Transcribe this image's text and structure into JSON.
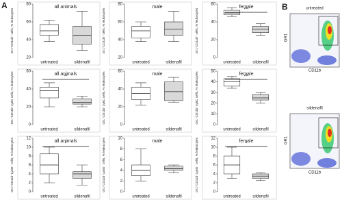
{
  "panel_labels": [
    "A",
    "B"
  ],
  "chart_data": [
    {
      "type": "box",
      "title": "all animals",
      "ylabel": "Gr1⁺CD11b⁺ cells, % leukocytes",
      "categories": [
        "untreated",
        "sildenafil"
      ],
      "colors": [
        "#ffffff",
        "#d9d9d9"
      ],
      "ylim": [
        20,
        80
      ],
      "yticks": [
        20,
        40,
        60,
        80
      ],
      "boxes": [
        {
          "min": 38,
          "q1": 45,
          "median": 50,
          "q3": 57,
          "max": 62
        },
        {
          "min": 28,
          "q1": 35,
          "median": 45,
          "q3": 55,
          "max": 72
        }
      ]
    },
    {
      "type": "box",
      "title": "male",
      "ylabel": "Gr1⁺CD11b⁺ cells, % leukocytes",
      "categories": [
        "untreated",
        "sildenafil"
      ],
      "colors": [
        "#ffffff",
        "#d9d9d9"
      ],
      "ylim": [
        20,
        80
      ],
      "yticks": [
        20,
        40,
        60,
        80
      ],
      "boxes": [
        {
          "min": 38,
          "q1": 42,
          "median": 50,
          "q3": 55,
          "max": 60
        },
        {
          "min": 38,
          "q1": 45,
          "median": 52,
          "q3": 60,
          "max": 72
        }
      ]
    },
    {
      "type": "box",
      "title": "female",
      "ylabel": "Gr1⁺CD11b⁺ cells, % leukocytes",
      "categories": [
        "untreated",
        "sildenafil"
      ],
      "colors": [
        "#ffffff",
        "#d9d9d9"
      ],
      "ylim": [
        0,
        60
      ],
      "yticks": [
        0,
        20,
        40,
        60
      ],
      "annotation": "***",
      "boxes": [
        {
          "min": 46,
          "q1": 48,
          "median": 50,
          "q3": 53,
          "max": 56
        },
        {
          "min": 25,
          "q1": 28,
          "median": 32,
          "q3": 35,
          "max": 38
        }
      ]
    },
    {
      "type": "box",
      "title": "all animals",
      "ylabel": "Gr1⁺CD11b⁺Ly6C cells, % leukocytes",
      "categories": [
        "untreated",
        "sildenafil"
      ],
      "colors": [
        "#ffffff",
        "#d9d9d9"
      ],
      "ylim": [
        0,
        60
      ],
      "yticks": [
        0,
        20,
        40,
        60
      ],
      "annotation": "**",
      "boxes": [
        {
          "min": 20,
          "q1": 30,
          "median": 38,
          "q3": 42,
          "max": 47
        },
        {
          "min": 20,
          "q1": 23,
          "median": 25,
          "q3": 29,
          "max": 32
        }
      ]
    },
    {
      "type": "box",
      "title": "male",
      "ylabel": "Gr1⁺CD11b⁺Ly6C cells, % leukocytes",
      "categories": [
        "untreated",
        "sildenafil"
      ],
      "colors": [
        "#ffffff",
        "#d9d9d9"
      ],
      "ylim": [
        0,
        60
      ],
      "yticks": [
        0,
        20,
        40,
        60
      ],
      "boxes": [
        {
          "min": 22,
          "q1": 28,
          "median": 35,
          "q3": 42,
          "max": 47
        },
        {
          "min": 25,
          "q1": 27,
          "median": 37,
          "q3": 48,
          "max": 53
        }
      ]
    },
    {
      "type": "box",
      "title": "female",
      "ylabel": "Gr1⁺CD11b⁺Ly6C cells, % leukocytes",
      "categories": [
        "untreated",
        "sildenafil"
      ],
      "colors": [
        "#ffffff",
        "#d9d9d9"
      ],
      "ylim": [
        0,
        50
      ],
      "yticks": [
        0,
        10,
        20,
        30,
        40,
        50
      ],
      "annotation": "***",
      "boxes": [
        {
          "min": 34,
          "q1": 36,
          "median": 40,
          "q3": 43,
          "max": 45
        },
        {
          "min": 20,
          "q1": 23,
          "median": 25,
          "q3": 28,
          "max": 30
        }
      ]
    },
    {
      "type": "box",
      "title": "all animals",
      "ylabel": "Gr1⁺CD11b⁺Ly6G⁺ cells, % leukocytes",
      "categories": [
        "untreated",
        "sildenafil"
      ],
      "colors": [
        "#ffffff",
        "#d9d9d9"
      ],
      "ylim": [
        0,
        12
      ],
      "yticks": [
        0,
        2,
        4,
        6,
        8,
        10,
        12
      ],
      "annotation": "*",
      "boxes": [
        {
          "min": 2,
          "q1": 4,
          "median": 6,
          "q3": 8.5,
          "max": 10
        },
        {
          "min": 1.5,
          "q1": 3,
          "median": 4,
          "q3": 4.5,
          "max": 6
        }
      ]
    },
    {
      "type": "box",
      "title": "male",
      "ylabel": "Gr1⁺CD11b⁺Ly6G⁺ cells, % leukocytes",
      "categories": [
        "untreated",
        "sildenafil"
      ],
      "colors": [
        "#ffffff",
        "#d9d9d9"
      ],
      "ylim": [
        0,
        10
      ],
      "yticks": [
        0,
        2,
        4,
        6,
        8,
        10
      ],
      "boxes": [
        {
          "min": 2,
          "q1": 3,
          "median": 4,
          "q3": 5,
          "max": 8
        },
        {
          "min": 3.5,
          "q1": 4,
          "median": 4.3,
          "q3": 4.8,
          "max": 5
        }
      ]
    },
    {
      "type": "box",
      "title": "female",
      "ylabel": "Gr1⁺CD11b⁺Ly6G⁺ cells, % leukocytes",
      "categories": [
        "untreated",
        "sildenafil"
      ],
      "colors": [
        "#ffffff",
        "#d9d9d9"
      ],
      "ylim": [
        0,
        12
      ],
      "yticks": [
        0,
        2,
        4,
        6,
        8,
        10,
        12
      ],
      "annotation": "*",
      "boxes": [
        {
          "min": 3,
          "q1": 4,
          "median": 6,
          "q3": 8,
          "max": 10
        },
        {
          "min": 2.5,
          "q1": 3,
          "median": 3.5,
          "q3": 4,
          "max": 4.2
        }
      ]
    }
  ],
  "flow_panels": [
    {
      "title": "untreated",
      "xlabel": "CD11b",
      "ylabel": "GR1"
    },
    {
      "title": "sildenafil",
      "xlabel": "CD11b",
      "ylabel": "GR1"
    }
  ]
}
